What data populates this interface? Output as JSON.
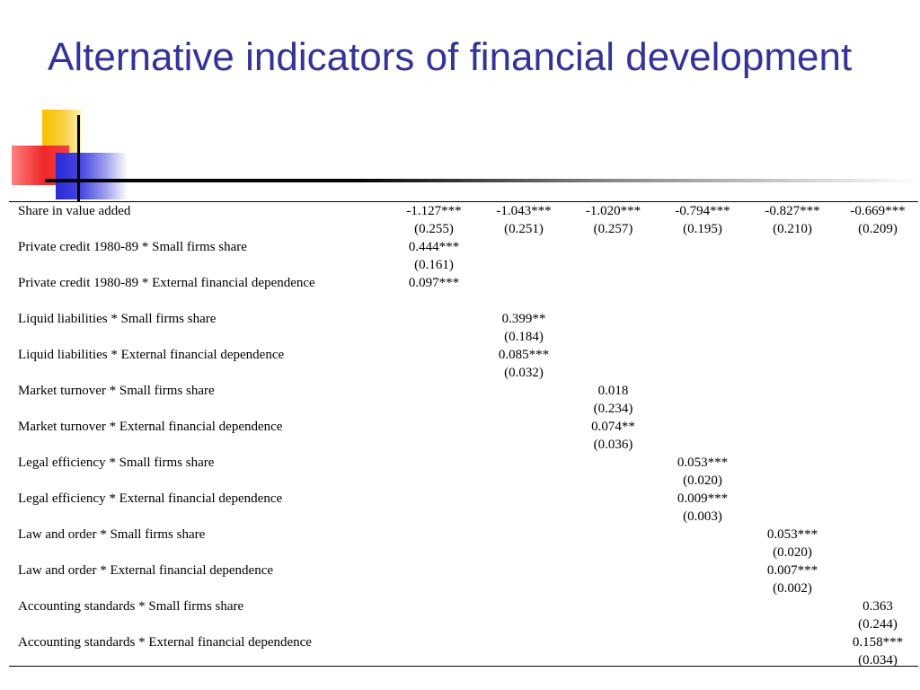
{
  "slide": {
    "title": "Alternative indicators of financial development"
  },
  "table": {
    "rows": [
      {
        "label": "Share in value added",
        "cells": [
          {
            "coef": "-1.127***",
            "se": "(0.255)"
          },
          {
            "coef": "-1.043***",
            "se": "(0.251)"
          },
          {
            "coef": "-1.020***",
            "se": "(0.257)"
          },
          {
            "coef": "-0.794***",
            "se": "(0.195)"
          },
          {
            "coef": "-0.827***",
            "se": "(0.210)"
          },
          {
            "coef": "-0.669***",
            "se": "(0.209)"
          }
        ]
      },
      {
        "label": "Private credit 1980-89 * Small firms share",
        "cells": [
          {
            "coef": "0.444***",
            "se": "(0.161)"
          },
          {
            "coef": "",
            "se": ""
          },
          {
            "coef": "",
            "se": ""
          },
          {
            "coef": "",
            "se": ""
          },
          {
            "coef": "",
            "se": ""
          },
          {
            "coef": "",
            "se": ""
          }
        ]
      },
      {
        "label": "Private credit 1980-89 * External financial dependence",
        "cells": [
          {
            "coef": "0.097***",
            "se": ""
          },
          {
            "coef": "",
            "se": ""
          },
          {
            "coef": "",
            "se": ""
          },
          {
            "coef": "",
            "se": ""
          },
          {
            "coef": "",
            "se": ""
          },
          {
            "coef": "",
            "se": ""
          }
        ]
      },
      {
        "label": "Liquid liabilities * Small firms share",
        "cells": [
          {
            "coef": "",
            "se": ""
          },
          {
            "coef": "0.399**",
            "se": "(0.184)"
          },
          {
            "coef": "",
            "se": ""
          },
          {
            "coef": "",
            "se": ""
          },
          {
            "coef": "",
            "se": ""
          },
          {
            "coef": "",
            "se": ""
          }
        ]
      },
      {
        "label": "Liquid liabilities * External financial dependence",
        "cells": [
          {
            "coef": "",
            "se": ""
          },
          {
            "coef": "0.085***",
            "se": "(0.032)"
          },
          {
            "coef": "",
            "se": ""
          },
          {
            "coef": "",
            "se": ""
          },
          {
            "coef": "",
            "se": ""
          },
          {
            "coef": "",
            "se": ""
          }
        ]
      },
      {
        "label": "Market turnover * Small firms share",
        "cells": [
          {
            "coef": "",
            "se": ""
          },
          {
            "coef": "",
            "se": ""
          },
          {
            "coef": "0.018",
            "se": "(0.234)"
          },
          {
            "coef": "",
            "se": ""
          },
          {
            "coef": "",
            "se": ""
          },
          {
            "coef": "",
            "se": ""
          }
        ]
      },
      {
        "label": "Market turnover * External financial dependence",
        "cells": [
          {
            "coef": "",
            "se": ""
          },
          {
            "coef": "",
            "se": ""
          },
          {
            "coef": "0.074**",
            "se": "(0.036)"
          },
          {
            "coef": "",
            "se": ""
          },
          {
            "coef": "",
            "se": ""
          },
          {
            "coef": "",
            "se": ""
          }
        ]
      },
      {
        "label": "Legal efficiency * Small firms share",
        "cells": [
          {
            "coef": "",
            "se": ""
          },
          {
            "coef": "",
            "se": ""
          },
          {
            "coef": "",
            "se": ""
          },
          {
            "coef": "0.053***",
            "se": "(0.020)"
          },
          {
            "coef": "",
            "se": ""
          },
          {
            "coef": "",
            "se": ""
          }
        ]
      },
      {
        "label": "Legal efficiency * External financial dependence",
        "cells": [
          {
            "coef": "",
            "se": ""
          },
          {
            "coef": "",
            "se": ""
          },
          {
            "coef": "",
            "se": ""
          },
          {
            "coef": "0.009***",
            "se": "(0.003)"
          },
          {
            "coef": "",
            "se": ""
          },
          {
            "coef": "",
            "se": ""
          }
        ]
      },
      {
        "label": "Law and order * Small firms share",
        "cells": [
          {
            "coef": "",
            "se": ""
          },
          {
            "coef": "",
            "se": ""
          },
          {
            "coef": "",
            "se": ""
          },
          {
            "coef": "",
            "se": ""
          },
          {
            "coef": "0.053***",
            "se": "(0.020)"
          },
          {
            "coef": "",
            "se": ""
          }
        ]
      },
      {
        "label": "Law and order * External financial dependence",
        "cells": [
          {
            "coef": "",
            "se": ""
          },
          {
            "coef": "",
            "se": ""
          },
          {
            "coef": "",
            "se": ""
          },
          {
            "coef": "",
            "se": ""
          },
          {
            "coef": "0.007***",
            "se": "(0.002)"
          },
          {
            "coef": "",
            "se": ""
          }
        ]
      },
      {
        "label": "Accounting standards * Small firms share",
        "cells": [
          {
            "coef": "",
            "se": ""
          },
          {
            "coef": "",
            "se": ""
          },
          {
            "coef": "",
            "se": ""
          },
          {
            "coef": "",
            "se": ""
          },
          {
            "coef": "",
            "se": ""
          },
          {
            "coef": "0.363",
            "se": "(0.244)"
          }
        ]
      },
      {
        "label": "Accounting standards * External financial dependence",
        "cells": [
          {
            "coef": "",
            "se": ""
          },
          {
            "coef": "",
            "se": ""
          },
          {
            "coef": "",
            "se": ""
          },
          {
            "coef": "",
            "se": ""
          },
          {
            "coef": "",
            "se": ""
          },
          {
            "coef": "0.158***",
            "se": "(0.034)"
          }
        ]
      }
    ]
  },
  "colors": {
    "title": "#333399",
    "accent_yellow": "#f7c000",
    "accent_red": "#f02828",
    "accent_blue": "#2a2ad8"
  }
}
